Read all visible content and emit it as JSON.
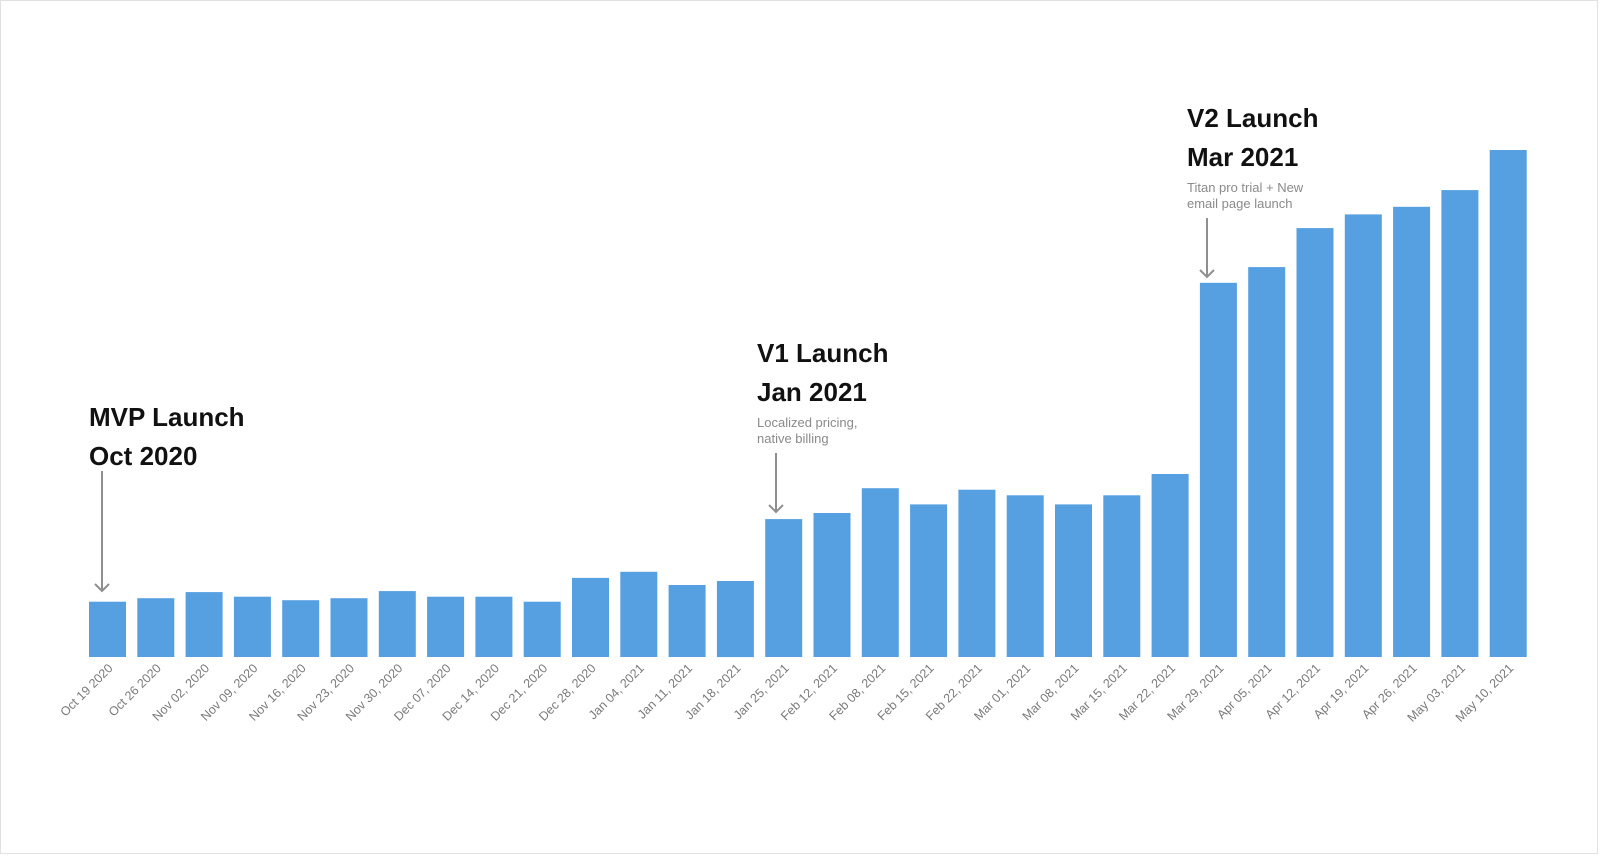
{
  "colors": {
    "bar": "#569fe0",
    "annotation_title": "#111111",
    "annotation_desc": "#8a8a8a",
    "arrow": "#8f8f8f",
    "tick": "#7a7a7a"
  },
  "annotations": {
    "mvp": {
      "line1": "MVP Launch",
      "line2": "Oct 2020",
      "desc1": "",
      "desc2": "",
      "category": "Oct 19 2020"
    },
    "v1": {
      "line1": "V1 Launch",
      "line2": "Jan 2021",
      "desc1": "Localized pricing,",
      "desc2": "native billing",
      "category": "Jan 25, 2021"
    },
    "v2": {
      "line1": "V2 Launch",
      "line2": "Mar 2021",
      "desc1": "Titan pro trial + New",
      "desc2": "email page launch",
      "category": "Mar 29, 2021"
    }
  },
  "chart_data": {
    "type": "bar",
    "title": "",
    "xlabel": "",
    "ylabel": "",
    "ylim": [
      0,
      100
    ],
    "grid": false,
    "categories": [
      "Oct 19 2020",
      "Oct 26 2020",
      "Nov 02, 2020",
      "Nov 09, 2020",
      "Nov 16, 2020",
      "Nov 23, 2020",
      "Nov 30, 2020",
      "Dec 07, 2020",
      "Dec 14, 2020",
      "Dec 21, 2020",
      "Dec 28, 2020",
      "Jan 04, 2021",
      "Jan 11, 2021",
      "Jan 18, 2021",
      "Jan 25, 2021",
      "Feb 12, 2021",
      "Feb 08, 2021",
      "Feb 15, 2021",
      "Feb 22, 2021",
      "Mar 01, 2021",
      "Mar 08, 2021",
      "Mar 15, 2021",
      "Mar 22, 2021",
      "Mar 29, 2021",
      "Apr 05, 2021",
      "Apr 12, 2021",
      "Apr 19, 2021",
      "Apr 26, 2021",
      "May 03, 2021",
      "May 10, 2021"
    ],
    "values": [
      10.9,
      11.6,
      12.8,
      11.9,
      11.2,
      11.6,
      13.0,
      11.9,
      11.9,
      10.9,
      15.6,
      16.8,
      14.2,
      15.0,
      27.2,
      28.4,
      33.3,
      30.1,
      33.0,
      31.9,
      30.1,
      31.9,
      36.1,
      73.8,
      76.9,
      84.6,
      87.3,
      88.8,
      92.1,
      100
    ]
  }
}
